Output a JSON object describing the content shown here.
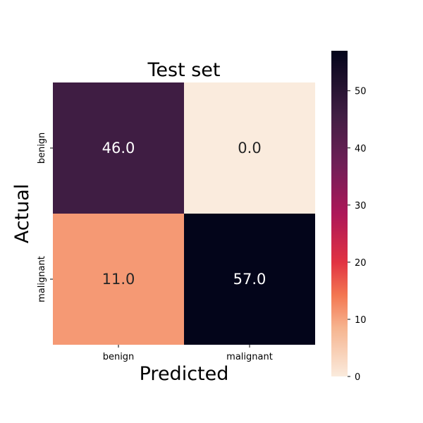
{
  "chart_data": {
    "type": "heatmap",
    "title": "Test set",
    "xlabel": "Predicted",
    "ylabel": "Actual",
    "x_categories": [
      "benign",
      "malignant"
    ],
    "y_categories": [
      "benign",
      "malignant"
    ],
    "values": [
      [
        46.0,
        0.0
      ],
      [
        11.0,
        57.0
      ]
    ],
    "cell_labels": [
      [
        "46.0",
        "0.0"
      ],
      [
        "11.0",
        "57.0"
      ]
    ],
    "colormap": "rocket_r",
    "colorbar": {
      "vmin": 0,
      "vmax": 57,
      "ticks": [
        0,
        10,
        20,
        30,
        40,
        50
      ]
    },
    "grid": false,
    "legend": "colorbar-right"
  }
}
